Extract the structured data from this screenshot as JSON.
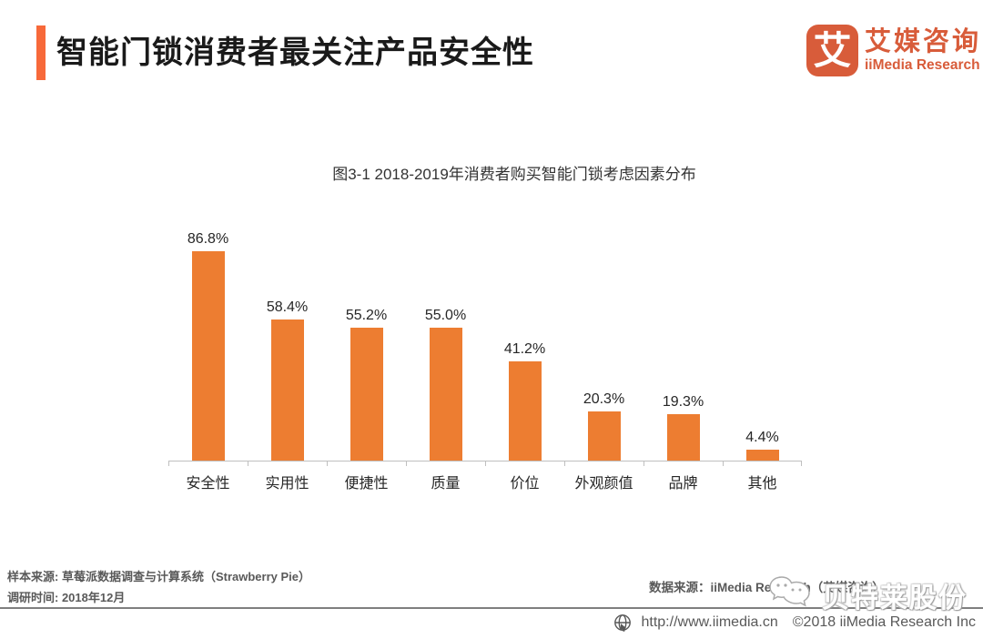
{
  "header": {
    "title": "智能门锁消费者最关注产品安全性"
  },
  "logo": {
    "glyph": "艾",
    "name_cn": "艾媒咨询",
    "name_en": "iiMedia Research",
    "color": "#D85C3A"
  },
  "chart_data": {
    "type": "bar",
    "title": "图3-1 2018-2019年消费者购买智能门锁考虑因素分布",
    "categories": [
      "安全性",
      "实用性",
      "便捷性",
      "质量",
      "价位",
      "外观颜值",
      "品牌",
      "其他"
    ],
    "values": [
      86.8,
      58.4,
      55.2,
      55.0,
      41.2,
      20.3,
      19.3,
      4.4
    ],
    "value_labels": [
      "86.8%",
      "58.4%",
      "55.2%",
      "55.0%",
      "41.2%",
      "20.3%",
      "19.3%",
      "4.4%"
    ],
    "bar_color": "#ED7D31",
    "axis_color": "#BFBFBF",
    "ylim": [
      0,
      97
    ],
    "grid": false,
    "legend": false,
    "xlabel": "",
    "ylabel": ""
  },
  "footnotes": {
    "sample_source": "样本来源: 草莓派数据调查与计算系统（Strawberry Pie）",
    "survey_time": "调研时间: 2018年12月",
    "data_source": "数据来源：iiMedia Research（艾媒咨询）"
  },
  "watermark": {
    "text": "贝特莱股份"
  },
  "footer": {
    "url": "http://www.iimedia.cn",
    "copyright": "©2018  iiMedia Research Inc"
  }
}
